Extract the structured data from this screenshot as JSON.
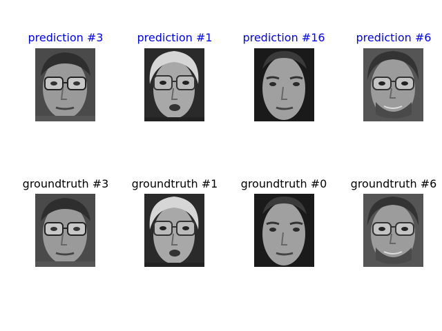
{
  "colors": {
    "prediction_title": "#0000ff",
    "groundtruth_title": "#000000"
  },
  "predictions": [
    {
      "title": "prediction #3",
      "face": "face-glasses-dark-hair"
    },
    {
      "title": "prediction #1",
      "face": "face-glasses-light-hair"
    },
    {
      "title": "prediction #16",
      "face": "face-young-no-glasses"
    },
    {
      "title": "prediction #6",
      "face": "face-glasses-beard"
    }
  ],
  "groundtruths": [
    {
      "title": "groundtruth #3",
      "face": "face-glasses-dark-hair"
    },
    {
      "title": "groundtruth #1",
      "face": "face-glasses-light-hair"
    },
    {
      "title": "groundtruth #0",
      "face": "face-young-no-glasses"
    },
    {
      "title": "groundtruth #6",
      "face": "face-glasses-beard"
    }
  ]
}
